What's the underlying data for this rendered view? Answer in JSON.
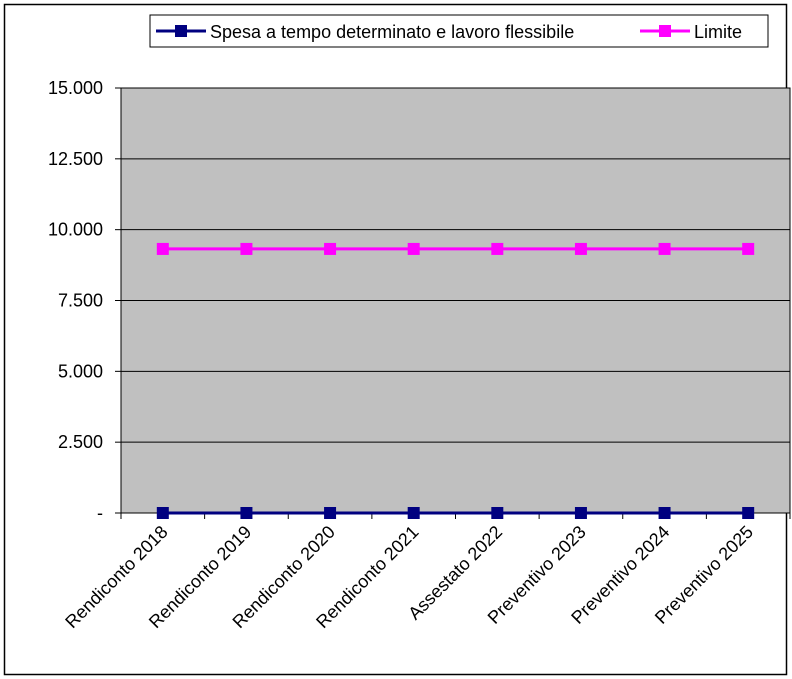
{
  "chart_data": {
    "type": "line",
    "categories": [
      "Rendiconto 2018",
      "Rendiconto 2019",
      "Rendiconto 2020",
      "Rendiconto 2021",
      "Assestato 2022",
      "Preventivo 2023",
      "Preventivo 2024",
      "Preventivo 2025"
    ],
    "series": [
      {
        "name": "Spesa a tempo determinato e lavoro flessibile",
        "values": [
          0,
          0,
          0,
          0,
          0,
          0,
          0,
          0
        ],
        "color": "#000080",
        "marker": "square"
      },
      {
        "name": "Limite",
        "values": [
          9320,
          9320,
          9320,
          9320,
          9320,
          9320,
          9320,
          9320
        ],
        "color": "#FF00FF",
        "marker": "square"
      }
    ],
    "ylim": [
      0,
      15000
    ],
    "yticks": [
      {
        "value": 15000,
        "label": "15.000"
      },
      {
        "value": 12500,
        "label": "12.500"
      },
      {
        "value": 10000,
        "label": "10.000"
      },
      {
        "value": 7500,
        "label": "7.500"
      },
      {
        "value": 5000,
        "label": "5.000"
      },
      {
        "value": 2500,
        "label": "2.500"
      },
      {
        "value": 0,
        "label": "-"
      }
    ],
    "grid": true,
    "plot_background": "#C0C0C0",
    "legend_position": "top"
  }
}
